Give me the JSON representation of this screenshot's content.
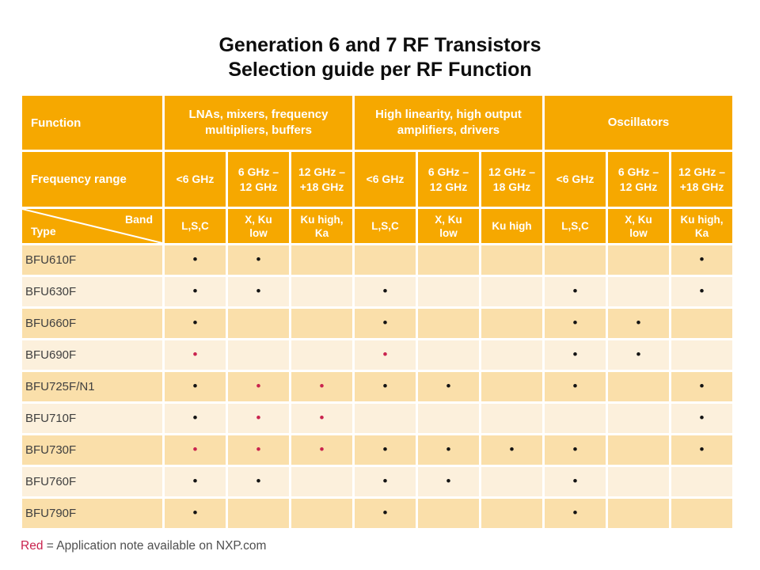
{
  "title": {
    "line1": "Generation 6 and 7 RF Transistors",
    "line2": "Selection guide per RF Function"
  },
  "table": {
    "function_header": "Function",
    "frequency_header": "Frequency range",
    "type_label": "Type",
    "band_label": "Band",
    "groups": [
      {
        "label": "LNAs, mixers, frequency\nmultipliers, buffers"
      },
      {
        "label": "High linearity, high output\namplifiers, drivers"
      },
      {
        "label": "Oscillators"
      }
    ],
    "frequencies": [
      "<6 GHz",
      "6 GHz –\n12 GHz",
      "12 GHz –\n+18 GHz",
      "<6 GHz",
      "6 GHz –\n12 GHz",
      "12 GHz –\n18 GHz",
      "<6 GHz",
      "6 GHz –\n12 GHz",
      "12 GHz –\n+18 GHz"
    ],
    "bands": [
      "L,S,C",
      "X, Ku\nlow",
      "Ku high,\nKa",
      "L,S,C",
      "X, Ku\nlow",
      "Ku high",
      "L,S,C",
      "X, Ku\nlow",
      "Ku high,\nKa"
    ],
    "rows": [
      {
        "type": "BFU610F",
        "cells": [
          "B",
          "B",
          "",
          "",
          "",
          "",
          "",
          "",
          "B"
        ]
      },
      {
        "type": "BFU630F",
        "cells": [
          "B",
          "B",
          "",
          "B",
          "",
          "",
          "B",
          "",
          "B"
        ]
      },
      {
        "type": "BFU660F",
        "cells": [
          "B",
          "",
          "",
          "B",
          "",
          "",
          "B",
          "B",
          ""
        ]
      },
      {
        "type": "BFU690F",
        "cells": [
          "R",
          "",
          "",
          "R",
          "",
          "",
          "B",
          "B",
          ""
        ]
      },
      {
        "type": "BFU725F/N1",
        "cells": [
          "B",
          "R",
          "R",
          "B",
          "B",
          "",
          "B",
          "",
          "B"
        ]
      },
      {
        "type": "BFU710F",
        "cells": [
          "B",
          "R",
          "R",
          "",
          "",
          "",
          "",
          "",
          "B"
        ]
      },
      {
        "type": "BFU730F",
        "cells": [
          "R",
          "R",
          "R",
          "B",
          "B",
          "B",
          "B",
          "",
          "B"
        ]
      },
      {
        "type": "BFU760F",
        "cells": [
          "B",
          "B",
          "",
          "B",
          "B",
          "",
          "B",
          "",
          ""
        ]
      },
      {
        "type": "BFU790F",
        "cells": [
          "B",
          "",
          "",
          "B",
          "",
          "",
          "B",
          "",
          ""
        ]
      }
    ]
  },
  "legend": {
    "red_word": "Red",
    "rest": " = Application note available on NXP.com"
  },
  "colors": {
    "orange": "#F6A800",
    "row_dark": "#FADFAA",
    "row_light": "#FCF0DC",
    "red": "#C9234E",
    "dot_black": "#141414"
  }
}
